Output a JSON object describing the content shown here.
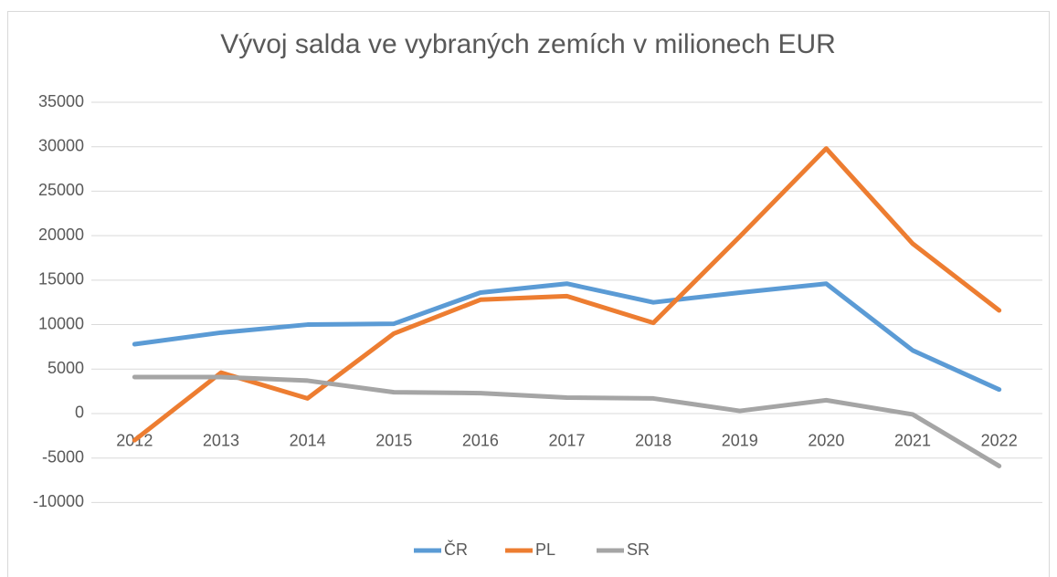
{
  "chart_data": {
    "type": "line",
    "title": "Vývoj salda ve vybraných zemích v milionech EUR",
    "categories": [
      "2012",
      "2013",
      "2014",
      "2015",
      "2016",
      "2017",
      "2018",
      "2019",
      "2020",
      "2021",
      "2022"
    ],
    "series": [
      {
        "name": "ČR",
        "color": "#5b9bd5",
        "values": [
          7800,
          9100,
          10000,
          10100,
          13600,
          14600,
          12500,
          13600,
          14600,
          7100,
          2700
        ]
      },
      {
        "name": "PL",
        "color": "#ed7d31",
        "values": [
          -3000,
          4600,
          1700,
          9000,
          12800,
          13200,
          10200,
          19900,
          29800,
          19100,
          11600
        ]
      },
      {
        "name": "SR",
        "color": "#a5a5a5",
        "values": [
          4100,
          4100,
          3700,
          2400,
          2300,
          1800,
          1700,
          300,
          1500,
          -100,
          -5900
        ]
      }
    ],
    "ylim": [
      -10000,
      35000
    ],
    "yticks": [
      -10000,
      -5000,
      0,
      5000,
      10000,
      15000,
      20000,
      25000,
      30000,
      35000
    ],
    "grid": true,
    "legend": "bottom"
  }
}
